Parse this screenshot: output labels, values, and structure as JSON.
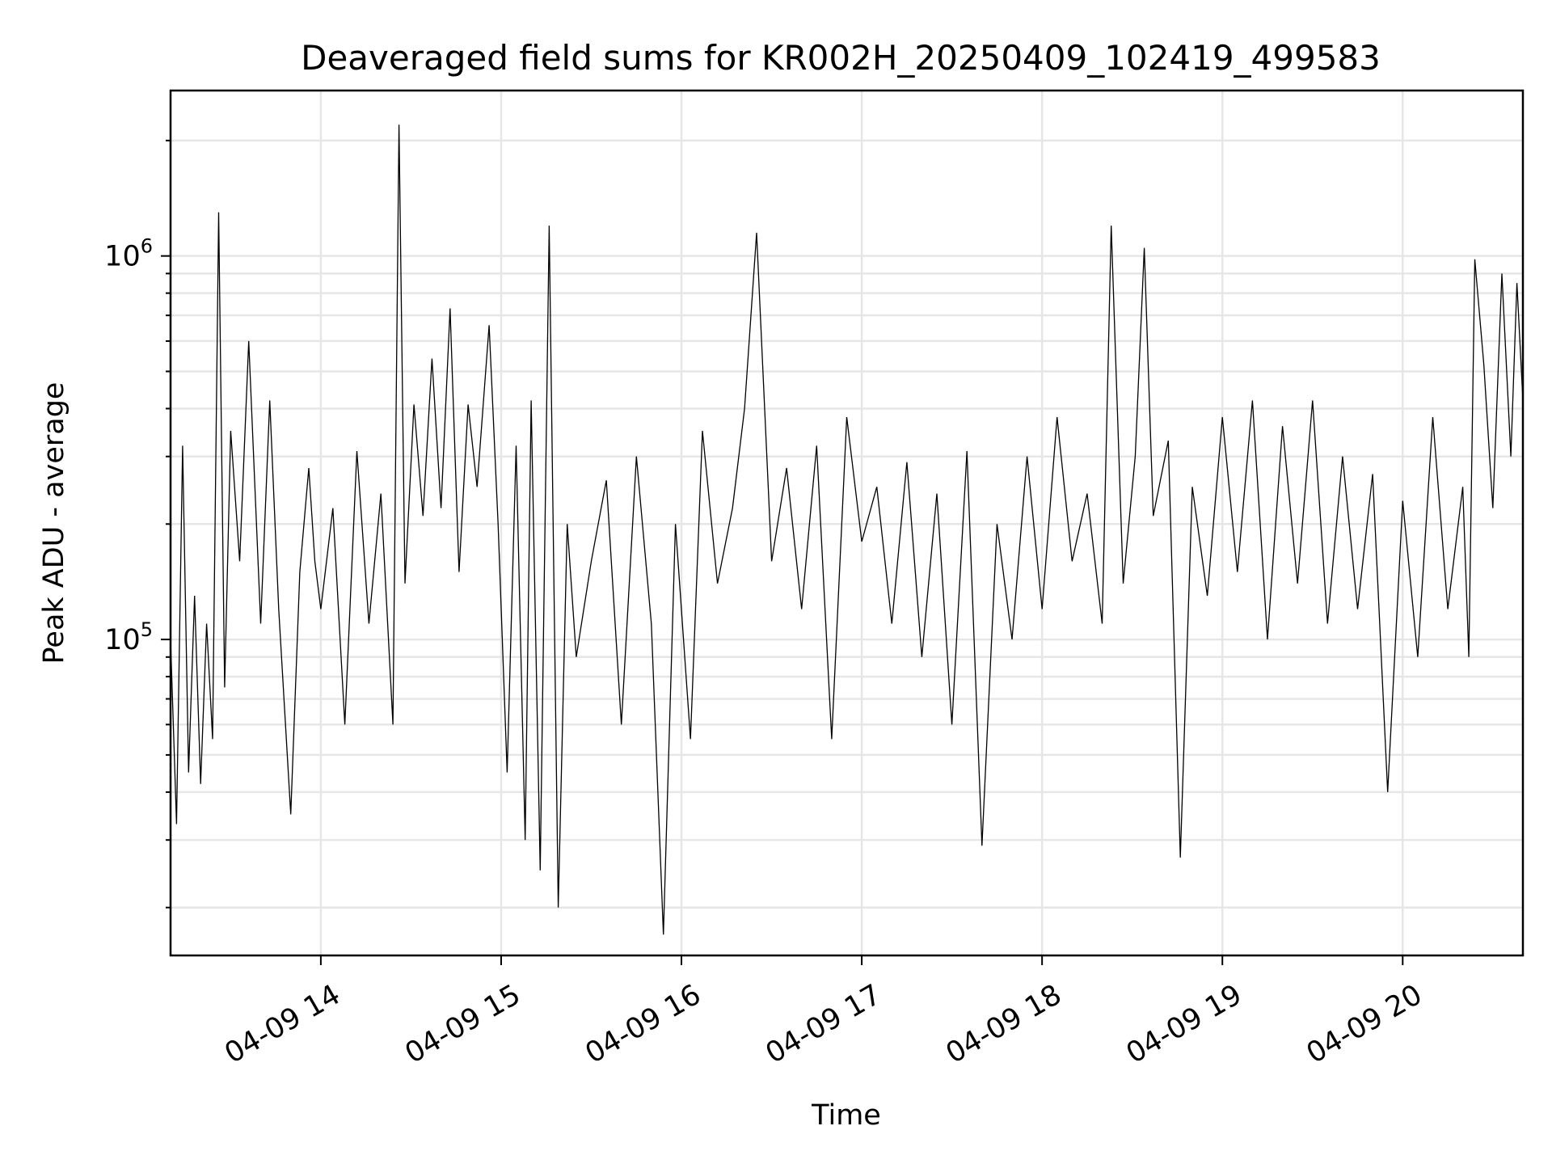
{
  "chart_data": {
    "type": "line",
    "title": "Deaveraged field sums for KR002H_20250409_102419_499583",
    "xlabel": "Time",
    "ylabel": "Peak ADU - average",
    "yscale": "log",
    "ylim": [
      15000,
      2700000
    ],
    "xlim": [
      "2025-04-09 13:10",
      "2025-04-09 20:40"
    ],
    "grid": true,
    "x_tick_values": [
      "2025-04-09 14:00",
      "2025-04-09 15:00",
      "2025-04-09 16:00",
      "2025-04-09 17:00",
      "2025-04-09 18:00",
      "2025-04-09 19:00",
      "2025-04-09 20:00"
    ],
    "x_tick_labels": [
      "04-09 14",
      "04-09 15",
      "04-09 16",
      "04-09 17",
      "04-09 18",
      "04-09 19",
      "04-09 20"
    ],
    "y_ticks": [
      {
        "value": 100000,
        "base": "10",
        "exp": "5"
      },
      {
        "value": 1000000,
        "base": "10",
        "exp": "6"
      }
    ],
    "series": [
      {
        "color": "#000000",
        "points": [
          [
            "2025-04-09 13:10",
            100000
          ],
          [
            "2025-04-09 13:12",
            33000
          ],
          [
            "2025-04-09 13:14",
            320000
          ],
          [
            "2025-04-09 13:16",
            45000
          ],
          [
            "2025-04-09 13:18",
            130000
          ],
          [
            "2025-04-09 13:20",
            42000
          ],
          [
            "2025-04-09 13:22",
            110000
          ],
          [
            "2025-04-09 13:24",
            55000
          ],
          [
            "2025-04-09 13:26",
            1300000
          ],
          [
            "2025-04-09 13:28",
            75000
          ],
          [
            "2025-04-09 13:30",
            350000
          ],
          [
            "2025-04-09 13:33",
            160000
          ],
          [
            "2025-04-09 13:36",
            600000
          ],
          [
            "2025-04-09 13:40",
            110000
          ],
          [
            "2025-04-09 13:43",
            420000
          ],
          [
            "2025-04-09 13:46",
            120000
          ],
          [
            "2025-04-09 13:50",
            35000
          ],
          [
            "2025-04-09 13:53",
            150000
          ],
          [
            "2025-04-09 13:56",
            280000
          ],
          [
            "2025-04-09 13:58",
            160000
          ],
          [
            "2025-04-09 14:00",
            120000
          ],
          [
            "2025-04-09 14:04",
            220000
          ],
          [
            "2025-04-09 14:08",
            60000
          ],
          [
            "2025-04-09 14:12",
            310000
          ],
          [
            "2025-04-09 14:16",
            110000
          ],
          [
            "2025-04-09 14:20",
            240000
          ],
          [
            "2025-04-09 14:24",
            60000
          ],
          [
            "2025-04-09 14:26",
            2200000
          ],
          [
            "2025-04-09 14:28",
            140000
          ],
          [
            "2025-04-09 14:31",
            410000
          ],
          [
            "2025-04-09 14:34",
            210000
          ],
          [
            "2025-04-09 14:37",
            540000
          ],
          [
            "2025-04-09 14:40",
            220000
          ],
          [
            "2025-04-09 14:43",
            730000
          ],
          [
            "2025-04-09 14:46",
            150000
          ],
          [
            "2025-04-09 14:49",
            410000
          ],
          [
            "2025-04-09 14:52",
            250000
          ],
          [
            "2025-04-09 14:56",
            660000
          ],
          [
            "2025-04-09 14:59",
            200000
          ],
          [
            "2025-04-09 15:02",
            45000
          ],
          [
            "2025-04-09 15:05",
            320000
          ],
          [
            "2025-04-09 15:08",
            30000
          ],
          [
            "2025-04-09 15:10",
            420000
          ],
          [
            "2025-04-09 15:13",
            25000
          ],
          [
            "2025-04-09 15:16",
            1200000
          ],
          [
            "2025-04-09 15:19",
            20000
          ],
          [
            "2025-04-09 15:22",
            200000
          ],
          [
            "2025-04-09 15:25",
            90000
          ],
          [
            "2025-04-09 15:30",
            160000
          ],
          [
            "2025-04-09 15:35",
            260000
          ],
          [
            "2025-04-09 15:40",
            60000
          ],
          [
            "2025-04-09 15:45",
            300000
          ],
          [
            "2025-04-09 15:50",
            110000
          ],
          [
            "2025-04-09 15:54",
            17000
          ],
          [
            "2025-04-09 15:58",
            200000
          ],
          [
            "2025-04-09 16:03",
            55000
          ],
          [
            "2025-04-09 16:07",
            350000
          ],
          [
            "2025-04-09 16:12",
            140000
          ],
          [
            "2025-04-09 16:17",
            220000
          ],
          [
            "2025-04-09 16:21",
            400000
          ],
          [
            "2025-04-09 16:25",
            1150000
          ],
          [
            "2025-04-09 16:30",
            160000
          ],
          [
            "2025-04-09 16:35",
            280000
          ],
          [
            "2025-04-09 16:40",
            120000
          ],
          [
            "2025-04-09 16:45",
            320000
          ],
          [
            "2025-04-09 16:50",
            55000
          ],
          [
            "2025-04-09 16:55",
            380000
          ],
          [
            "2025-04-09 17:00",
            180000
          ],
          [
            "2025-04-09 17:05",
            250000
          ],
          [
            "2025-04-09 17:10",
            110000
          ],
          [
            "2025-04-09 17:15",
            290000
          ],
          [
            "2025-04-09 17:20",
            90000
          ],
          [
            "2025-04-09 17:25",
            240000
          ],
          [
            "2025-04-09 17:30",
            60000
          ],
          [
            "2025-04-09 17:35",
            310000
          ],
          [
            "2025-04-09 17:40",
            29000
          ],
          [
            "2025-04-09 17:45",
            200000
          ],
          [
            "2025-04-09 17:50",
            100000
          ],
          [
            "2025-04-09 17:55",
            300000
          ],
          [
            "2025-04-09 18:00",
            120000
          ],
          [
            "2025-04-09 18:05",
            380000
          ],
          [
            "2025-04-09 18:10",
            160000
          ],
          [
            "2025-04-09 18:15",
            240000
          ],
          [
            "2025-04-09 18:20",
            110000
          ],
          [
            "2025-04-09 18:23",
            1200000
          ],
          [
            "2025-04-09 18:27",
            140000
          ],
          [
            "2025-04-09 18:31",
            300000
          ],
          [
            "2025-04-09 18:34",
            1050000
          ],
          [
            "2025-04-09 18:37",
            210000
          ],
          [
            "2025-04-09 18:42",
            330000
          ],
          [
            "2025-04-09 18:46",
            27000
          ],
          [
            "2025-04-09 18:50",
            250000
          ],
          [
            "2025-04-09 18:55",
            130000
          ],
          [
            "2025-04-09 19:00",
            380000
          ],
          [
            "2025-04-09 19:05",
            150000
          ],
          [
            "2025-04-09 19:10",
            420000
          ],
          [
            "2025-04-09 19:15",
            100000
          ],
          [
            "2025-04-09 19:20",
            360000
          ],
          [
            "2025-04-09 19:25",
            140000
          ],
          [
            "2025-04-09 19:30",
            420000
          ],
          [
            "2025-04-09 19:35",
            110000
          ],
          [
            "2025-04-09 19:40",
            300000
          ],
          [
            "2025-04-09 19:45",
            120000
          ],
          [
            "2025-04-09 19:50",
            270000
          ],
          [
            "2025-04-09 19:55",
            40000
          ],
          [
            "2025-04-09 20:00",
            230000
          ],
          [
            "2025-04-09 20:05",
            90000
          ],
          [
            "2025-04-09 20:10",
            380000
          ],
          [
            "2025-04-09 20:15",
            120000
          ],
          [
            "2025-04-09 20:20",
            250000
          ],
          [
            "2025-04-09 20:22",
            90000
          ],
          [
            "2025-04-09 20:24",
            980000
          ],
          [
            "2025-04-09 20:27",
            520000
          ],
          [
            "2025-04-09 20:30",
            220000
          ],
          [
            "2025-04-09 20:33",
            900000
          ],
          [
            "2025-04-09 20:36",
            300000
          ],
          [
            "2025-04-09 20:38",
            850000
          ],
          [
            "2025-04-09 20:40",
            420000
          ]
        ]
      }
    ]
  }
}
